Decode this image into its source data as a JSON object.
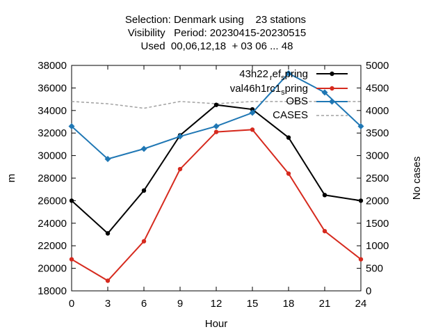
{
  "chart_data": {
    "type": "line",
    "title_lines": [
      "Selection: Denmark using    23 stations",
      "Visibility   Period: 20230415-20230515",
      "Used  00,06,12,18  + 03 06 ... 48"
    ],
    "xlabel": "Hour",
    "ylabel": "m",
    "y2label": "No cases",
    "x": [
      0,
      3,
      6,
      9,
      12,
      15,
      18,
      21,
      24
    ],
    "xticks": [
      0,
      3,
      6,
      9,
      12,
      15,
      18,
      21,
      24
    ],
    "xlim": [
      0,
      24
    ],
    "ylim": [
      18000,
      38000
    ],
    "yticks": [
      18000,
      20000,
      22000,
      24000,
      26000,
      28000,
      30000,
      32000,
      34000,
      36000,
      38000
    ],
    "y2lim": [
      0,
      5000
    ],
    "y2ticks": [
      0,
      500,
      1000,
      1500,
      2000,
      2500,
      3000,
      3500,
      4000,
      4500,
      5000
    ],
    "grid": false,
    "legend_position": "top-right",
    "series": [
      {
        "name": "43h22_ref_spring",
        "legend_main": "43h22",
        "legend_sub1": "r",
        "legend_mid": "ef",
        "legend_sub2": "s",
        "legend_tail": "pring",
        "color": "#000000",
        "marker": "circle",
        "axis": "y",
        "values": [
          26000,
          23100,
          26900,
          31800,
          34500,
          34100,
          31600,
          26500,
          26000
        ]
      },
      {
        "name": "val46h1rc1_spring",
        "legend_main": "val46h1rc1",
        "legend_sub1": "s",
        "legend_tail": "pring",
        "color": "#d62a1e",
        "marker": "circle",
        "axis": "y",
        "values": [
          20800,
          18900,
          22400,
          28800,
          32100,
          32300,
          28400,
          23300,
          20800
        ]
      },
      {
        "name": "OBS",
        "color": "#1f77b4",
        "marker": "diamond",
        "axis": "y",
        "values": [
          32600,
          29700,
          30600,
          31700,
          32600,
          33800,
          37300,
          35600,
          32600
        ]
      },
      {
        "name": "CASES",
        "color": "#a0a0a0",
        "dashed": true,
        "axis": "y2",
        "values": [
          4200,
          4150,
          4050,
          4200,
          4150,
          4200,
          4200,
          4200,
          4200
        ]
      }
    ]
  }
}
